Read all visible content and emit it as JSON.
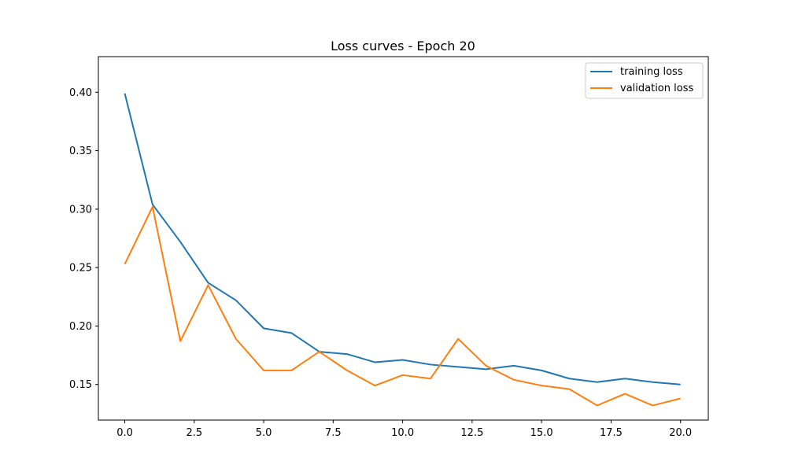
{
  "chart_data": {
    "type": "line",
    "title": "Loss curves - Epoch 20",
    "xlabel": "",
    "ylabel": "",
    "xlim": [
      -0.95,
      21.0
    ],
    "ylim": [
      0.1195,
      0.4305
    ],
    "x_ticks": [
      0.0,
      2.5,
      5.0,
      7.5,
      10.0,
      12.5,
      15.0,
      17.5,
      20.0
    ],
    "x_tick_labels": [
      "0.0",
      "2.5",
      "5.0",
      "7.5",
      "10.0",
      "12.5",
      "15.0",
      "17.5",
      "20.0"
    ],
    "y_ticks": [
      0.15,
      0.2,
      0.25,
      0.3,
      0.35,
      0.4
    ],
    "y_tick_labels": [
      "0.15",
      "0.20",
      "0.25",
      "0.30",
      "0.35",
      "0.40"
    ],
    "grid": false,
    "legend_position": "top-right",
    "x": [
      0,
      1,
      2,
      3,
      4,
      5,
      6,
      7,
      8,
      9,
      10,
      11,
      12,
      13,
      14,
      15,
      16,
      17,
      18,
      19,
      20
    ],
    "series": [
      {
        "name": "training loss",
        "color": "#1f77b4",
        "values": [
          0.399,
          0.304,
          0.272,
          0.237,
          0.222,
          0.198,
          0.194,
          0.178,
          0.176,
          0.169,
          0.171,
          0.167,
          0.165,
          0.163,
          0.166,
          0.162,
          0.155,
          0.152,
          0.155,
          0.152,
          0.15
        ]
      },
      {
        "name": "validation loss",
        "color": "#ff7f0e",
        "values": [
          0.253,
          0.302,
          0.187,
          0.235,
          0.189,
          0.162,
          0.162,
          0.178,
          0.162,
          0.149,
          0.158,
          0.155,
          0.189,
          0.166,
          0.154,
          0.149,
          0.146,
          0.132,
          0.142,
          0.132,
          0.138
        ]
      }
    ]
  }
}
